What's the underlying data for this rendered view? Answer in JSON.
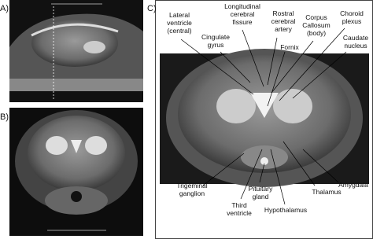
{
  "panels": {
    "a": "A)",
    "b": "B)",
    "c": "C)"
  },
  "labels": [
    {
      "lines": [
        "Lateral",
        "ventricle",
        "(central)"
      ]
    },
    {
      "lines": [
        "Longitudinal",
        "cerebral",
        "fissure"
      ]
    },
    {
      "lines": [
        "Rostral",
        "cerebral",
        "artery"
      ]
    },
    {
      "lines": [
        "Corpus",
        "Callosum",
        "(body)"
      ]
    },
    {
      "lines": [
        "Choroid",
        "plexus"
      ]
    },
    {
      "lines": [
        "Cingulate",
        "gyrus"
      ]
    },
    {
      "lines": [
        "Fornix"
      ]
    },
    {
      "lines": [
        "Caudate",
        "nucleus"
      ]
    },
    {
      "lines": [
        "Trigeminal",
        "ganglion"
      ]
    },
    {
      "lines": [
        "Third",
        "ventricle"
      ]
    },
    {
      "lines": [
        "Pituitary",
        "gland"
      ]
    },
    {
      "lines": [
        "Hypothalamus"
      ]
    },
    {
      "lines": [
        "Thalamus"
      ]
    },
    {
      "lines": [
        "Amygdala"
      ]
    }
  ]
}
